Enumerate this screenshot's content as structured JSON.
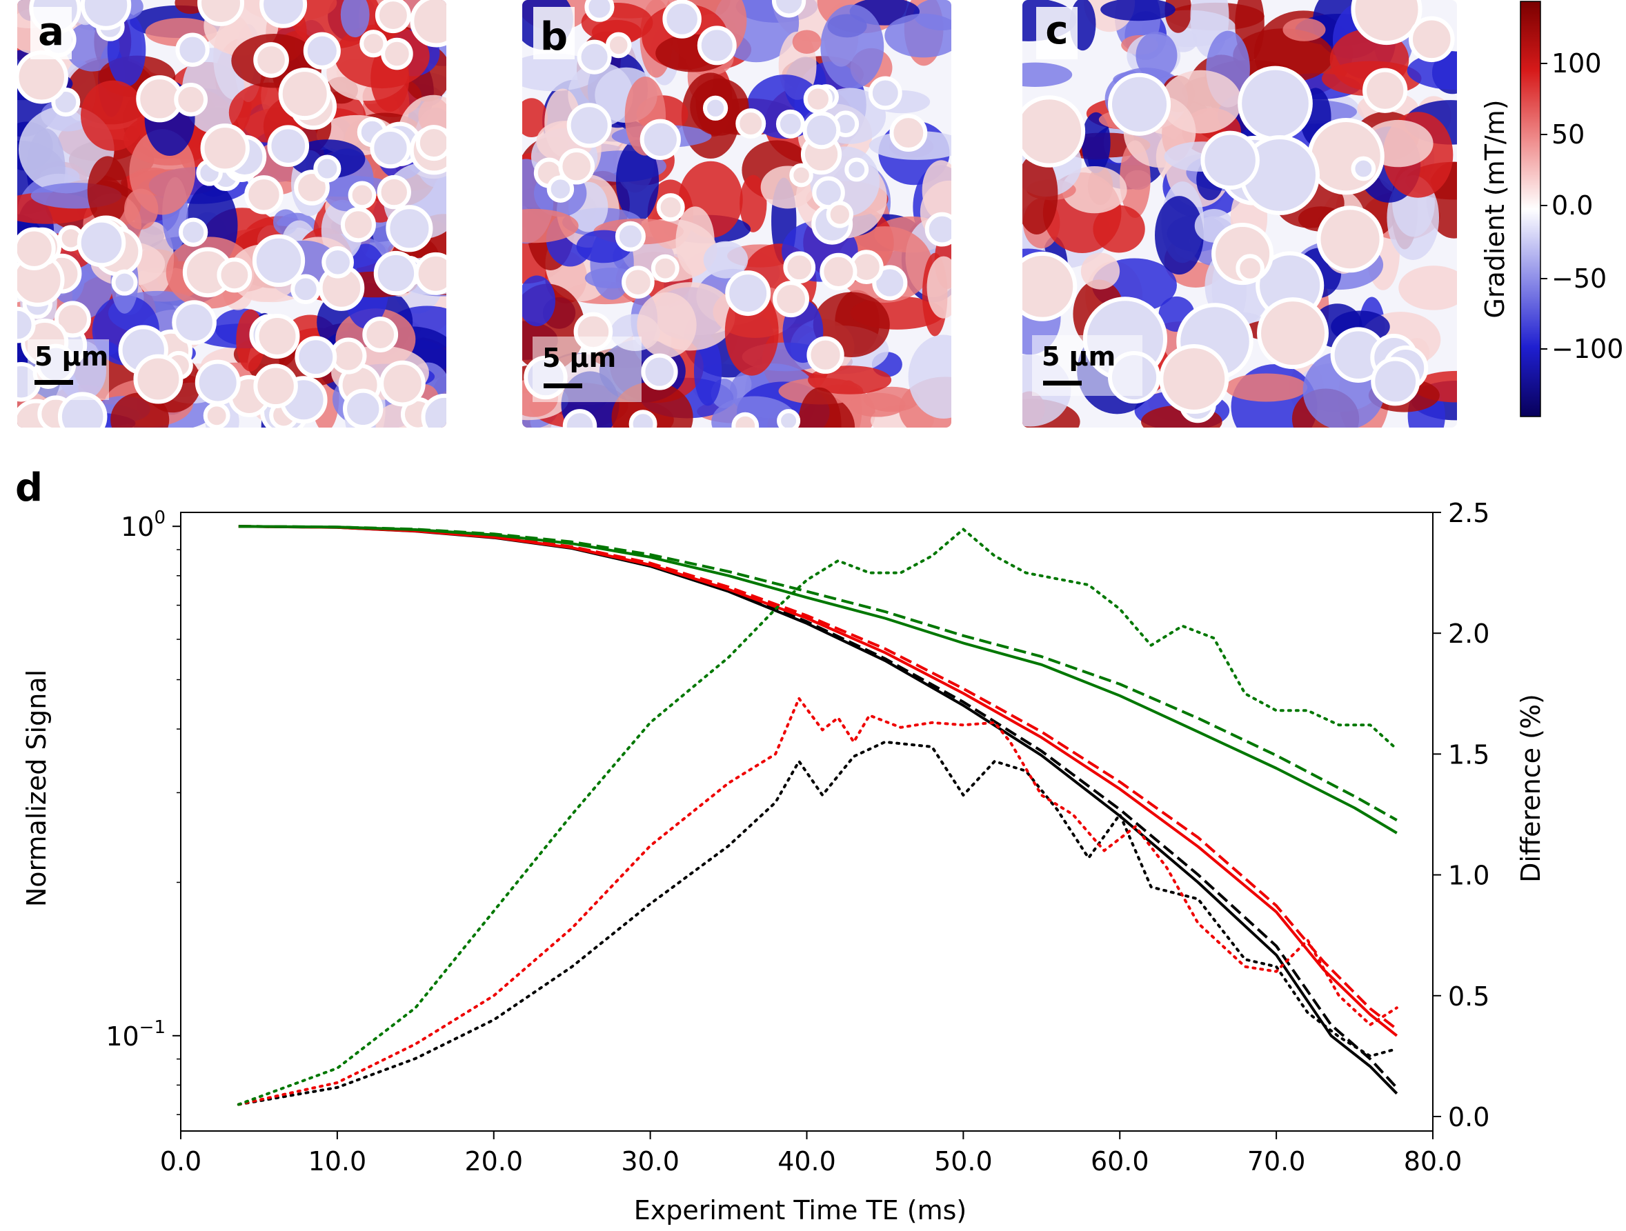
{
  "panels": [
    {
      "label": "a",
      "scale_bar": "5 µm"
    },
    {
      "label": "b",
      "scale_bar": "5 µm"
    },
    {
      "label": "c",
      "scale_bar": "5 µm"
    }
  ],
  "colorbar": {
    "label": "Gradient (mT/m)",
    "ticks": [
      "100",
      "50",
      "0.0",
      "−50",
      "−100"
    ],
    "colors": [
      "#08005a",
      "#1f1fd0",
      "#8f8fe8",
      "#ffffff",
      "#ef8c8c",
      "#d61a1a",
      "#7a0000"
    ]
  },
  "panel_d_label": "d",
  "chart_data": {
    "type": "line",
    "xlabel": "Experiment Time TE (ms)",
    "ylabel": "Normalized Signal",
    "y2label": "Difference (%)",
    "xlim": [
      0,
      80
    ],
    "ylim": [
      0.065,
      1.065
    ],
    "yscale": "log",
    "y2lim": [
      -0.06,
      2.5
    ],
    "x_ticks": [
      "0.0",
      "10.0",
      "20.0",
      "30.0",
      "40.0",
      "50.0",
      "60.0",
      "70.0",
      "80.0"
    ],
    "y_ticks": [
      {
        "value": 1.0,
        "base": "10",
        "exp": "0"
      },
      {
        "value": 0.1,
        "base": "10",
        "exp": "−1"
      }
    ],
    "y2_ticks": [
      "0.0",
      "0.5",
      "1.0",
      "1.5",
      "2.0",
      "2.5"
    ],
    "grid": false,
    "series": [
      {
        "color": "#000000",
        "style": "solid",
        "axis": "left",
        "points": [
          [
            3.7,
            1.0
          ],
          [
            10,
            0.995
          ],
          [
            15,
            0.978
          ],
          [
            20,
            0.95
          ],
          [
            25,
            0.905
          ],
          [
            30,
            0.835
          ],
          [
            35,
            0.745
          ],
          [
            40,
            0.645
          ],
          [
            45,
            0.545
          ],
          [
            50,
            0.445
          ],
          [
            55,
            0.355
          ],
          [
            60,
            0.27
          ],
          [
            65,
            0.2
          ],
          [
            70,
            0.144
          ],
          [
            73.5,
            0.1
          ],
          [
            76,
            0.087
          ],
          [
            77.7,
            0.077
          ]
        ]
      },
      {
        "color": "#000000",
        "style": "dashed",
        "axis": "left",
        "points": [
          [
            3.7,
            1.0
          ],
          [
            10,
            0.996
          ],
          [
            15,
            0.98
          ],
          [
            20,
            0.953
          ],
          [
            25,
            0.91
          ],
          [
            30,
            0.84
          ],
          [
            35,
            0.75
          ],
          [
            40,
            0.65
          ],
          [
            45,
            0.55
          ],
          [
            50,
            0.452
          ],
          [
            55,
            0.362
          ],
          [
            60,
            0.278
          ],
          [
            65,
            0.207
          ],
          [
            70,
            0.15
          ],
          [
            73.5,
            0.105
          ],
          [
            76,
            0.09
          ],
          [
            77.7,
            0.079
          ]
        ]
      },
      {
        "color": "#ee0000",
        "style": "solid",
        "axis": "left",
        "points": [
          [
            3.7,
            1.0
          ],
          [
            10,
            0.995
          ],
          [
            15,
            0.979
          ],
          [
            20,
            0.952
          ],
          [
            25,
            0.908
          ],
          [
            30,
            0.84
          ],
          [
            35,
            0.752
          ],
          [
            40,
            0.66
          ],
          [
            45,
            0.565
          ],
          [
            50,
            0.47
          ],
          [
            55,
            0.385
          ],
          [
            60,
            0.305
          ],
          [
            65,
            0.235
          ],
          [
            70,
            0.175
          ],
          [
            73,
            0.135
          ],
          [
            76,
            0.11
          ],
          [
            77.7,
            0.1
          ]
        ]
      },
      {
        "color": "#ee0000",
        "style": "dashed",
        "axis": "left",
        "points": [
          [
            3.7,
            1.0
          ],
          [
            10,
            0.996
          ],
          [
            15,
            0.981
          ],
          [
            20,
            0.955
          ],
          [
            25,
            0.912
          ],
          [
            30,
            0.847
          ],
          [
            35,
            0.76
          ],
          [
            40,
            0.668
          ],
          [
            45,
            0.575
          ],
          [
            50,
            0.48
          ],
          [
            55,
            0.395
          ],
          [
            60,
            0.315
          ],
          [
            65,
            0.245
          ],
          [
            70,
            0.18
          ],
          [
            73,
            0.14
          ],
          [
            76,
            0.113
          ],
          [
            77.7,
            0.103
          ]
        ]
      },
      {
        "color": "#007700",
        "style": "solid",
        "axis": "left",
        "points": [
          [
            3.7,
            1.0
          ],
          [
            10,
            0.997
          ],
          [
            15,
            0.985
          ],
          [
            20,
            0.962
          ],
          [
            25,
            0.925
          ],
          [
            30,
            0.87
          ],
          [
            35,
            0.8
          ],
          [
            40,
            0.725
          ],
          [
            45,
            0.66
          ],
          [
            50,
            0.59
          ],
          [
            55,
            0.535
          ],
          [
            60,
            0.465
          ],
          [
            65,
            0.395
          ],
          [
            70,
            0.335
          ],
          [
            75,
            0.28
          ],
          [
            77.7,
            0.25
          ]
        ]
      },
      {
        "color": "#007700",
        "style": "dashed",
        "axis": "left",
        "points": [
          [
            3.7,
            1.0
          ],
          [
            10,
            0.997
          ],
          [
            15,
            0.987
          ],
          [
            20,
            0.966
          ],
          [
            25,
            0.932
          ],
          [
            30,
            0.88
          ],
          [
            35,
            0.815
          ],
          [
            40,
            0.745
          ],
          [
            45,
            0.68
          ],
          [
            50,
            0.61
          ],
          [
            55,
            0.555
          ],
          [
            60,
            0.49
          ],
          [
            65,
            0.42
          ],
          [
            70,
            0.355
          ],
          [
            75,
            0.295
          ],
          [
            77.7,
            0.265
          ]
        ]
      },
      {
        "color": "#000000",
        "style": "dotted",
        "axis": "right",
        "points": [
          [
            3.7,
            0.05
          ],
          [
            10,
            0.12
          ],
          [
            15,
            0.24
          ],
          [
            20,
            0.4
          ],
          [
            25,
            0.62
          ],
          [
            30,
            0.88
          ],
          [
            35,
            1.12
          ],
          [
            38,
            1.3
          ],
          [
            39.5,
            1.47
          ],
          [
            41,
            1.33
          ],
          [
            43,
            1.49
          ],
          [
            45,
            1.55
          ],
          [
            48,
            1.53
          ],
          [
            50,
            1.33
          ],
          [
            52,
            1.47
          ],
          [
            54,
            1.43
          ],
          [
            56,
            1.27
          ],
          [
            58,
            1.07
          ],
          [
            60,
            1.25
          ],
          [
            62,
            0.95
          ],
          [
            65,
            0.9
          ],
          [
            68,
            0.65
          ],
          [
            70,
            0.62
          ],
          [
            72,
            0.43
          ],
          [
            74,
            0.33
          ],
          [
            76,
            0.25
          ],
          [
            77.7,
            0.28
          ]
        ]
      },
      {
        "color": "#ee0000",
        "style": "dotted",
        "axis": "right",
        "points": [
          [
            3.7,
            0.05
          ],
          [
            10,
            0.14
          ],
          [
            15,
            0.3
          ],
          [
            20,
            0.5
          ],
          [
            25,
            0.78
          ],
          [
            30,
            1.12
          ],
          [
            35,
            1.38
          ],
          [
            38,
            1.5
          ],
          [
            39.5,
            1.73
          ],
          [
            41,
            1.6
          ],
          [
            42,
            1.65
          ],
          [
            43,
            1.55
          ],
          [
            44,
            1.66
          ],
          [
            46,
            1.61
          ],
          [
            48,
            1.63
          ],
          [
            50,
            1.62
          ],
          [
            52,
            1.63
          ],
          [
            53,
            1.55
          ],
          [
            55,
            1.33
          ],
          [
            57,
            1.25
          ],
          [
            59,
            1.1
          ],
          [
            61,
            1.2
          ],
          [
            63,
            1.03
          ],
          [
            65,
            0.8
          ],
          [
            68,
            0.62
          ],
          [
            70,
            0.6
          ],
          [
            72,
            0.73
          ],
          [
            74,
            0.5
          ],
          [
            76,
            0.38
          ],
          [
            77.7,
            0.45
          ]
        ]
      },
      {
        "color": "#007700",
        "style": "dotted",
        "axis": "right",
        "points": [
          [
            3.7,
            0.05
          ],
          [
            10,
            0.2
          ],
          [
            15,
            0.45
          ],
          [
            20,
            0.85
          ],
          [
            25,
            1.25
          ],
          [
            30,
            1.63
          ],
          [
            35,
            1.9
          ],
          [
            38,
            2.1
          ],
          [
            40,
            2.22
          ],
          [
            42,
            2.3
          ],
          [
            44,
            2.25
          ],
          [
            46,
            2.25
          ],
          [
            48,
            2.32
          ],
          [
            50,
            2.43
          ],
          [
            52,
            2.32
          ],
          [
            54,
            2.25
          ],
          [
            58,
            2.2
          ],
          [
            60,
            2.1
          ],
          [
            62,
            1.95
          ],
          [
            64,
            2.03
          ],
          [
            66,
            1.98
          ],
          [
            68,
            1.75
          ],
          [
            70,
            1.68
          ],
          [
            72,
            1.68
          ],
          [
            74,
            1.62
          ],
          [
            76,
            1.62
          ],
          [
            77.7,
            1.52
          ]
        ]
      }
    ]
  }
}
